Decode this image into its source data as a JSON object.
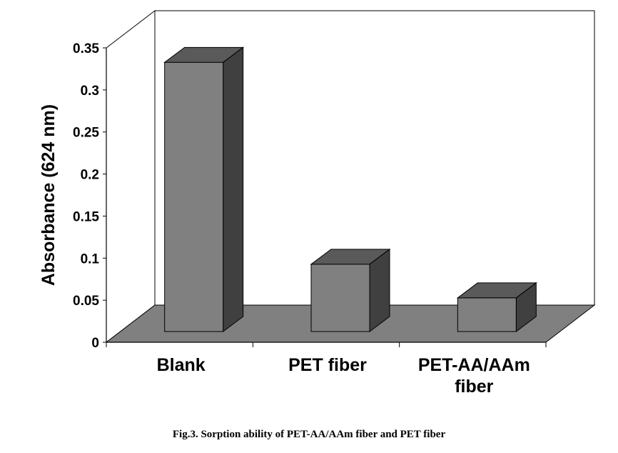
{
  "caption": "Fig.3. Sorption ability of PET-AA/AAm fiber and PET fiber",
  "chart_data": {
    "type": "bar",
    "style": "3d",
    "categories": [
      [
        "Blank"
      ],
      [
        "PET fiber"
      ],
      [
        "PET-AA/AAm",
        "fiber"
      ]
    ],
    "values": [
      0.32,
      0.08,
      0.04
    ],
    "ylabel": "Absorbance (624 nm)",
    "xlabel": "",
    "ylim": [
      0,
      0.35
    ],
    "yticks": [
      "0",
      "0.05",
      "0.1",
      "0.15",
      "0.2",
      "0.25",
      "0.3",
      "0.35"
    ],
    "grid": false,
    "legend": "none",
    "colors": {
      "bar_front": "#808080",
      "bar_top": "#5a5a5a",
      "bar_side": "#404040",
      "floor": "#808080",
      "walls": "#ffffff",
      "axis": "#000000"
    }
  }
}
